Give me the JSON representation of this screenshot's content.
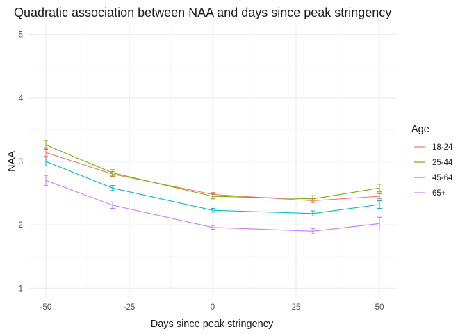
{
  "chart_data": {
    "type": "line",
    "title": "Quadratic association between NAA and days since peak stringency",
    "xlabel": "Days since peak stringency",
    "ylabel": "NAA",
    "xlim": [
      -55,
      55
    ],
    "ylim": [
      0.85,
      5.15
    ],
    "x_ticks": [
      -50,
      -25,
      0,
      25,
      50
    ],
    "x_tick_labels": [
      "-50",
      "-25",
      "0",
      "25",
      "50"
    ],
    "x_minor_ticks": [
      -37.5,
      -12.5,
      12.5,
      37.5
    ],
    "y_ticks": [
      1,
      2,
      3,
      4,
      5
    ],
    "y_tick_labels": [
      "1",
      "2",
      "3",
      "4",
      "5"
    ],
    "y_minor_ticks": [
      1.5,
      2.5,
      3.5,
      4.5
    ],
    "grid": true,
    "legend_title": "Age",
    "legend_position": "right",
    "x": [
      -50,
      -30,
      0,
      30,
      50
    ],
    "series": [
      {
        "name": "18-24",
        "color": "#F8766D",
        "values": [
          3.14,
          2.8,
          2.48,
          2.38,
          2.45
        ],
        "lower": [
          3.08,
          2.76,
          2.45,
          2.35,
          2.41
        ],
        "upper": [
          3.2,
          2.84,
          2.51,
          2.41,
          2.49
        ]
      },
      {
        "name": "25-44",
        "color": "#7CAE00",
        "values": [
          3.26,
          2.82,
          2.45,
          2.41,
          2.58
        ],
        "lower": [
          3.19,
          2.77,
          2.41,
          2.36,
          2.52
        ],
        "upper": [
          3.33,
          2.87,
          2.49,
          2.46,
          2.64
        ]
      },
      {
        "name": "45-64",
        "color": "#00BFC4",
        "values": [
          3.0,
          2.58,
          2.23,
          2.18,
          2.32
        ],
        "lower": [
          2.93,
          2.54,
          2.2,
          2.14,
          2.26
        ],
        "upper": [
          3.07,
          2.62,
          2.26,
          2.22,
          2.38
        ]
      },
      {
        "name": "65+",
        "color": "#C77CFF",
        "values": [
          2.7,
          2.31,
          1.96,
          1.9,
          2.02
        ],
        "lower": [
          2.62,
          2.26,
          1.93,
          1.86,
          1.92
        ],
        "upper": [
          2.78,
          2.36,
          1.99,
          1.94,
          2.12
        ]
      }
    ]
  }
}
